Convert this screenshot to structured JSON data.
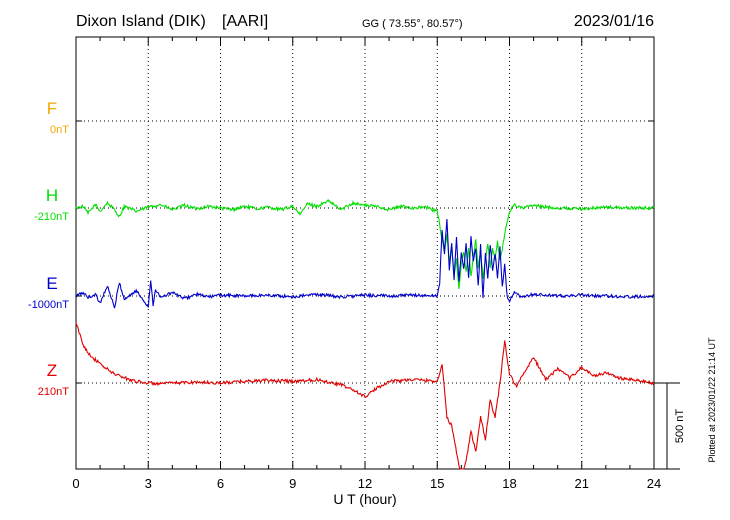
{
  "header": {
    "station": "Dixon Island (DIK)",
    "institute": "[AARI]",
    "coords": "GG ( 73.55°,  80.57°)",
    "date": "2023/01/16"
  },
  "plotted_note": "Plotted at 2023/01/22 21:14 UT",
  "scale_label": "500 nT",
  "chart_data": {
    "type": "line",
    "xlabel": "U T (hour)",
    "x_ticks": [
      0,
      3,
      6,
      9,
      12,
      15,
      18,
      21,
      24
    ],
    "xlim": [
      0,
      24
    ],
    "grid": true,
    "channels": [
      {
        "name": "F",
        "baseline": "0nT",
        "color": "#f0a800"
      },
      {
        "name": "H",
        "baseline": "-210nT",
        "color": "#00e000"
      },
      {
        "name": "E",
        "baseline": "-1000nT",
        "color": "#0000cc"
      },
      {
        "name": "Z",
        "baseline": "210nT",
        "color": "#e00000"
      }
    ],
    "series": [
      {
        "name": "H",
        "color": "#00e000",
        "x": [
          0,
          0.3,
          0.5,
          0.8,
          1.0,
          1.3,
          1.6,
          1.8,
          2.0,
          2.5,
          3.0,
          3.5,
          4.0,
          4.5,
          5.0,
          5.5,
          6.0,
          6.5,
          7.0,
          7.5,
          8.0,
          8.5,
          9.0,
          9.3,
          9.6,
          10.0,
          10.5,
          11.0,
          11.5,
          12.0,
          12.5,
          13.0,
          13.5,
          14.0,
          14.5,
          15.0,
          15.1,
          15.2,
          15.3,
          15.4,
          15.5,
          15.6,
          15.7,
          15.8,
          15.9,
          16.0,
          16.1,
          16.2,
          16.3,
          16.4,
          16.5,
          16.6,
          16.7,
          16.8,
          16.9,
          17.0,
          17.1,
          17.2,
          17.3,
          17.4,
          17.5,
          17.6,
          17.7,
          17.8,
          17.9,
          18.0,
          18.2,
          18.5,
          19.0,
          19.5,
          20.0,
          21.0,
          22.0,
          23.0,
          24.0
        ],
        "values": [
          0,
          10,
          -30,
          20,
          -20,
          30,
          -10,
          -50,
          10,
          -20,
          5,
          20,
          -10,
          15,
          -5,
          10,
          0,
          -10,
          10,
          -5,
          5,
          -10,
          10,
          -40,
          25,
          10,
          40,
          -10,
          30,
          15,
          10,
          -10,
          10,
          0,
          5,
          -20,
          -100,
          -180,
          -260,
          -150,
          -320,
          -220,
          -400,
          -300,
          -470,
          -330,
          -250,
          -370,
          -230,
          -400,
          -280,
          -180,
          -350,
          -250,
          -410,
          -300,
          -200,
          -350,
          -230,
          -300,
          -190,
          -310,
          -240,
          -150,
          -80,
          -20,
          20,
          0,
          15,
          5,
          0,
          -5,
          5,
          0,
          0
        ]
      },
      {
        "name": "E",
        "color": "#0000cc",
        "x": [
          0,
          0.3,
          0.5,
          0.8,
          1.0,
          1.3,
          1.6,
          1.8,
          2.0,
          2.5,
          3.0,
          3.1,
          3.2,
          3.3,
          3.5,
          4.0,
          4.5,
          5.0,
          5.5,
          6.0,
          7.0,
          8.0,
          9.0,
          10.0,
          11.0,
          12.0,
          13.0,
          14.0,
          15.0,
          15.1,
          15.2,
          15.3,
          15.4,
          15.5,
          15.6,
          15.7,
          15.8,
          15.9,
          16.0,
          16.1,
          16.2,
          16.3,
          16.4,
          16.5,
          16.6,
          16.7,
          16.8,
          16.9,
          17.0,
          17.1,
          17.2,
          17.3,
          17.4,
          17.5,
          17.6,
          17.7,
          17.8,
          17.9,
          18.0,
          18.2,
          18.5,
          19.0,
          20.0,
          21.0,
          22.0,
          23.0,
          24.0
        ],
        "values": [
          0,
          20,
          -10,
          10,
          -40,
          60,
          -70,
          80,
          -20,
          30,
          -60,
          90,
          -50,
          40,
          -10,
          20,
          -15,
          10,
          -5,
          5,
          0,
          5,
          -5,
          10,
          -5,
          5,
          0,
          5,
          0,
          80,
          380,
          250,
          450,
          150,
          300,
          100,
          350,
          80,
          250,
          150,
          300,
          100,
          350,
          200,
          280,
          60,
          300,
          -20,
          250,
          100,
          300,
          150,
          250,
          100,
          280,
          50,
          180,
          0,
          -30,
          20,
          -10,
          10,
          0,
          5,
          0,
          -5,
          0
        ]
      },
      {
        "name": "Z",
        "color": "#e00000",
        "x": [
          0,
          0.3,
          0.6,
          1.0,
          1.5,
          2.0,
          2.5,
          3.0,
          3.5,
          4.0,
          5.0,
          6.0,
          7.0,
          8.0,
          9.0,
          10.0,
          11.0,
          11.5,
          12.0,
          12.5,
          13.0,
          14.0,
          15.0,
          15.2,
          15.4,
          15.6,
          15.8,
          16.0,
          16.2,
          16.4,
          16.6,
          16.8,
          17.0,
          17.2,
          17.4,
          17.6,
          17.8,
          18.0,
          18.3,
          18.6,
          19.0,
          19.5,
          20.0,
          20.5,
          21.0,
          21.5,
          22.0,
          22.5,
          23.0,
          24.0
        ],
        "values": [
          350,
          220,
          160,
          110,
          60,
          30,
          10,
          0,
          -5,
          0,
          5,
          0,
          10,
          15,
          10,
          20,
          -10,
          -40,
          -80,
          -30,
          10,
          20,
          10,
          110,
          -200,
          -250,
          -400,
          -550,
          -450,
          -280,
          -400,
          -200,
          -330,
          -100,
          -200,
          -5,
          250,
          50,
          -20,
          60,
          150,
          20,
          80,
          30,
          90,
          40,
          60,
          30,
          20,
          0
        ]
      }
    ]
  }
}
